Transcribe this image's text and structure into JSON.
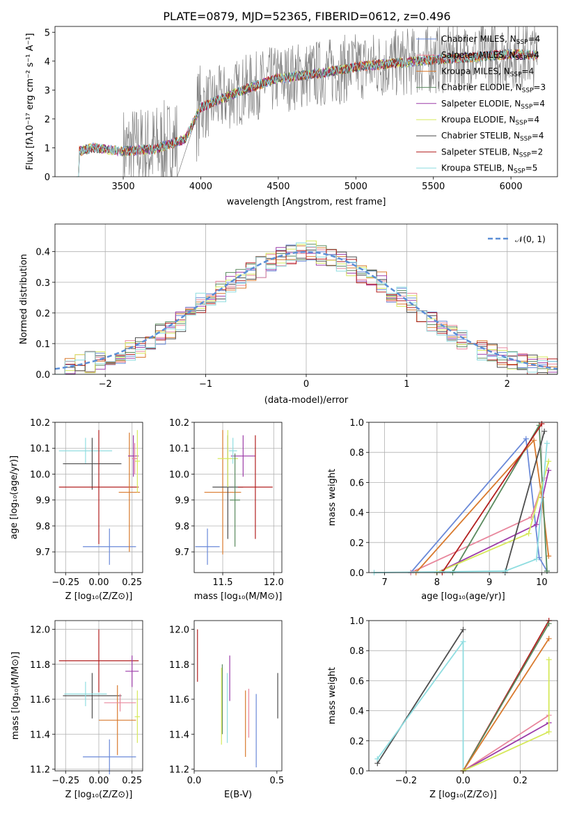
{
  "title": "PLATE=0879, MJD=52365, FIBERID=0612, z=0.496",
  "colors": {
    "chabrier_miles": "#6a89d8",
    "salpeter_miles": "#e8869c",
    "kroupa_miles": "#d97a2e",
    "chabrier_elodie": "#5a8a5e",
    "salpeter_elodie": "#9c3ba8",
    "kroupa_elodie": "#d6e85a",
    "chabrier_stelib": "#4d4d4d",
    "salpeter_stelib": "#b21f1f",
    "kroupa_stelib": "#8fdde0"
  },
  "chart_data": [
    {
      "id": "spectrum",
      "type": "line",
      "xlabel": "wavelength [Angstrom, rest frame]",
      "ylabel": "Flux [fλ10⁻¹⁷ erg cm⁻² s⁻¹ A⁻¹]",
      "xlim": [
        3060,
        6300
      ],
      "ylim": [
        0,
        5.2
      ],
      "xticks": [
        3500,
        4000,
        4500,
        5000,
        5500,
        6000
      ],
      "yticks": [
        0,
        1,
        2,
        3,
        4,
        5
      ],
      "model_continuum": {
        "x": [
          3200,
          3300,
          3500,
          3700,
          3900,
          4000,
          4300,
          4500,
          4800,
          5000,
          5300,
          5500,
          5800,
          6000,
          6150
        ],
        "y": [
          0.85,
          1.0,
          0.88,
          0.95,
          1.3,
          2.4,
          3.05,
          3.4,
          3.6,
          3.8,
          3.95,
          4.05,
          4.15,
          4.25,
          4.2
        ]
      },
      "legend": [
        {
          "label": "Chabrier MILES, N",
          "sub": "SSP",
          "suffix": "=4",
          "color_key": "chabrier_miles"
        },
        {
          "label": "Salpeter MILES, N",
          "sub": "SSP",
          "suffix": "=4",
          "color_key": "salpeter_miles"
        },
        {
          "label": "Kroupa MILES, N",
          "sub": "SSP",
          "suffix": "=4",
          "color_key": "kroupa_miles"
        },
        {
          "label": "Chabrier ELODIE, N",
          "sub": "SSP",
          "suffix": "=3",
          "color_key": "chabrier_elodie"
        },
        {
          "label": "Salpeter ELODIE, N",
          "sub": "SSP",
          "suffix": "=4",
          "color_key": "salpeter_elodie"
        },
        {
          "label": "Kroupa ELODIE, N",
          "sub": "SSP",
          "suffix": "=4",
          "color_key": "kroupa_elodie"
        },
        {
          "label": "Chabrier STELIB, N",
          "sub": "SSP",
          "suffix": "=4",
          "color_key": "chabrier_stelib"
        },
        {
          "label": "Salpeter STELIB, N",
          "sub": "SSP",
          "suffix": "=2",
          "color_key": "salpeter_stelib"
        },
        {
          "label": "Kroupa STELIB, N",
          "sub": "SSP",
          "suffix": "=5",
          "color_key": "kroupa_stelib"
        }
      ]
    },
    {
      "id": "residuals",
      "type": "histogram",
      "xlabel": "(data-model)/error",
      "ylabel": "Normed distribution",
      "xlim": [
        -2.5,
        2.5
      ],
      "ylim": [
        0,
        0.49
      ],
      "xticks": [
        -2,
        -1,
        0,
        1,
        2
      ],
      "yticks": [
        0.0,
        0.1,
        0.2,
        0.3,
        0.4
      ],
      "grid": true,
      "legend_label": "𝒩(0, 1)",
      "legend_placement": "top-right",
      "gaussian": {
        "mean": 0,
        "sigma": 1
      },
      "bins": 50,
      "reference_profile": [
        0.02,
        0.025,
        0.03,
        0.04,
        0.05,
        0.055,
        0.07,
        0.08,
        0.09,
        0.11,
        0.13,
        0.15,
        0.17,
        0.2,
        0.23,
        0.25,
        0.27,
        0.3,
        0.31,
        0.33,
        0.35,
        0.37,
        0.38,
        0.39,
        0.4,
        0.4,
        0.39,
        0.38,
        0.37,
        0.35,
        0.33,
        0.31,
        0.3,
        0.27,
        0.25,
        0.23,
        0.2,
        0.17,
        0.15,
        0.13,
        0.11,
        0.09,
        0.08,
        0.07,
        0.055,
        0.05,
        0.04,
        0.03,
        0.025,
        0.02
      ]
    },
    {
      "id": "z-age",
      "type": "errorbar",
      "xlabel": "Z [log₁₀(Z/Z⊙)]",
      "ylabel": "age  [log₁₀(age/yr)]",
      "xlim": [
        -0.33,
        0.33
      ],
      "ylim": [
        9.62,
        10.2
      ],
      "xticks": [
        -0.25,
        0.0,
        0.25
      ],
      "xticklabels": [
        "−0.25",
        "0.00",
        "0.25"
      ],
      "yticks": [
        9.7,
        9.8,
        9.9,
        10.0,
        10.1,
        10.2
      ],
      "grid": true,
      "points": [
        {
          "c": "chabrier_miles",
          "x": 0.08,
          "xe": 0.2,
          "y": 9.72,
          "ye": 0.07
        },
        {
          "c": "kroupa_stelib",
          "x": -0.1,
          "xe": 0.2,
          "y": 10.09,
          "ye": 0.05
        },
        {
          "c": "chabrier_stelib",
          "x": -0.05,
          "xe": 0.22,
          "y": 10.04,
          "ye": 0.1
        },
        {
          "c": "salpeter_stelib",
          "x": 0.0,
          "xe": 0.3,
          "y": 9.95,
          "ye": 0.22
        },
        {
          "c": "kroupa_miles",
          "x": 0.23,
          "xe": 0.08,
          "y": 9.93,
          "ye": 0.23
        },
        {
          "c": "salpeter_elodie",
          "x": 0.26,
          "xe": 0.04,
          "y": 10.07,
          "ye": 0.08
        },
        {
          "c": "kroupa_elodie",
          "x": 0.29,
          "xe": 0.02,
          "y": 10.05,
          "ye": 0.12
        },
        {
          "c": "salpeter_miles",
          "x": 0.27,
          "xe": 0.02,
          "y": 10.06,
          "ye": 0.06
        }
      ]
    },
    {
      "id": "mass-age",
      "type": "errorbar",
      "xlabel": "mass [log₁₀(M/M⊙)]",
      "ylabel": "",
      "xlim": [
        11.22,
        12.08
      ],
      "ylim": [
        9.62,
        10.2
      ],
      "xticks": [
        11.5,
        12.0
      ],
      "xticklabels": [
        "11.5",
        "12.0"
      ],
      "yticks": [
        9.7,
        9.8,
        9.9,
        10.0,
        10.1,
        10.2
      ],
      "grid": true,
      "points": [
        {
          "c": "chabrier_miles",
          "x": 11.35,
          "xe": 0.12,
          "y": 9.72,
          "ye": 0.07
        },
        {
          "c": "kroupa_miles",
          "x": 11.5,
          "xe": 0.18,
          "y": 9.93,
          "ye": 0.24
        },
        {
          "c": "chabrier_stelib",
          "x": 11.55,
          "xe": 0.15,
          "y": 9.95,
          "ye": 0.2
        },
        {
          "c": "kroupa_elodie",
          "x": 11.55,
          "xe": 0.1,
          "y": 10.06,
          "ye": 0.11
        },
        {
          "c": "salpeter_elodie",
          "x": 11.7,
          "xe": 0.12,
          "y": 10.07,
          "ye": 0.08
        },
        {
          "c": "salpeter_stelib",
          "x": 11.82,
          "xe": 0.17,
          "y": 9.95,
          "ye": 0.2
        },
        {
          "c": "kroupa_stelib",
          "x": 11.6,
          "xe": 0.04,
          "y": 10.09,
          "ye": 0.05
        },
        {
          "c": "chabrier_elodie",
          "x": 11.62,
          "xe": 0.05,
          "y": 9.9,
          "ye": 0.18
        }
      ]
    },
    {
      "id": "age-weight",
      "type": "line",
      "xlabel": "age  [log₁₀(age/yr)]",
      "ylabel": "mass weight",
      "xlim": [
        6.7,
        10.3
      ],
      "ylim": [
        0,
        1.0
      ],
      "xticks": [
        7,
        8,
        9,
        10
      ],
      "yticks": [
        0.0,
        0.2,
        0.4,
        0.6,
        0.8,
        1.0
      ],
      "grid": true,
      "series": [
        {
          "c": "chabrier_miles",
          "x": [
            7.5,
            9.7,
            9.95,
            10.1
          ],
          "y": [
            0.0,
            0.89,
            0.1,
            0.01
          ]
        },
        {
          "c": "salpeter_miles",
          "x": [
            7.5,
            9.8,
            10.05
          ],
          "y": [
            0.0,
            0.37,
            0.63
          ]
        },
        {
          "c": "kroupa_miles",
          "x": [
            7.6,
            9.85,
            10.0,
            10.13
          ],
          "y": [
            0.0,
            0.88,
            0.5,
            0.11
          ]
        },
        {
          "c": "chabrier_elodie",
          "x": [
            8.3,
            9.95,
            10.1
          ],
          "y": [
            0.0,
            0.98,
            0.01
          ]
        },
        {
          "c": "salpeter_elodie",
          "x": [
            8.0,
            9.9,
            10.13
          ],
          "y": [
            0.0,
            0.32,
            0.68
          ]
        },
        {
          "c": "kroupa_elodie",
          "x": [
            8.0,
            9.75,
            10.13
          ],
          "y": [
            0.0,
            0.26,
            0.74
          ]
        },
        {
          "c": "chabrier_stelib",
          "x": [
            9.3,
            10.05
          ],
          "y": [
            0.0,
            0.94
          ]
        },
        {
          "c": "salpeter_stelib",
          "x": [
            8.1,
            10.0
          ],
          "y": [
            0.0,
            0.99
          ]
        },
        {
          "c": "kroupa_stelib",
          "x": [
            6.8,
            9.3,
            9.9,
            10.1
          ],
          "y": [
            0.0,
            0.01,
            0.09,
            0.86
          ]
        }
      ]
    },
    {
      "id": "z-mass",
      "type": "errorbar",
      "xlabel": "Z [log₁₀(Z/Z⊙)]",
      "ylabel": "mass [log₁₀(M/M⊙)]",
      "xlim": [
        -0.33,
        0.33
      ],
      "ylim": [
        11.19,
        12.05
      ],
      "xticks": [
        -0.25,
        0.0,
        0.25
      ],
      "xticklabels": [
        "−0.25",
        "0.00",
        "0.25"
      ],
      "yticks": [
        11.2,
        11.4,
        11.6,
        11.8,
        12.0
      ],
      "grid": true,
      "points": [
        {
          "c": "salpeter_stelib",
          "x": 0.0,
          "xe": 0.3,
          "y": 11.82,
          "ye": 0.18
        },
        {
          "c": "chabrier_stelib",
          "x": -0.05,
          "xe": 0.22,
          "y": 11.62,
          "ye": 0.13
        },
        {
          "c": "kroupa_stelib",
          "x": -0.1,
          "xe": 0.16,
          "y": 11.63,
          "ye": 0.07
        },
        {
          "c": "chabrier_miles",
          "x": 0.08,
          "xe": 0.2,
          "y": 11.27,
          "ye": 0.1
        },
        {
          "c": "kroupa_miles",
          "x": 0.14,
          "xe": 0.14,
          "y": 11.48,
          "ye": 0.2
        },
        {
          "c": "salpeter_elodie",
          "x": 0.25,
          "xe": 0.05,
          "y": 11.76,
          "ye": 0.09
        },
        {
          "c": "kroupa_elodie",
          "x": 0.29,
          "xe": 0.02,
          "y": 11.5,
          "ye": 0.15
        },
        {
          "c": "salpeter_miles",
          "x": 0.16,
          "xe": 0.12,
          "y": 11.58,
          "ye": 0.05
        }
      ]
    },
    {
      "id": "ebv-mass",
      "type": "errorbar",
      "xlabel": "E(B-V)",
      "ylabel": "",
      "xlim": [
        0.0,
        0.53
      ],
      "ylim": [
        11.19,
        12.05
      ],
      "xticks": [
        0.0,
        0.5
      ],
      "xticklabels": [
        "0.0",
        "0.5"
      ],
      "yticks": [
        11.2,
        11.4,
        11.6,
        11.8,
        12.0
      ],
      "grid": false,
      "points": [
        {
          "c": "salpeter_stelib",
          "x": 0.02,
          "xe": 0,
          "y": 11.85,
          "ye": 0.15
        },
        {
          "c": "chabrier_elodie",
          "x": 0.17,
          "xe": 0,
          "y": 11.6,
          "ye": 0.2
        },
        {
          "c": "kroupa_elodie",
          "x": 0.165,
          "xe": 0,
          "y": 11.56,
          "ye": 0.22
        },
        {
          "c": "salpeter_elodie",
          "x": 0.215,
          "xe": 0,
          "y": 11.72,
          "ye": 0.13
        },
        {
          "c": "kroupa_stelib",
          "x": 0.2,
          "xe": 0,
          "y": 11.55,
          "ye": 0.2
        },
        {
          "c": "kroupa_miles",
          "x": 0.31,
          "xe": 0,
          "y": 11.46,
          "ye": 0.19
        },
        {
          "c": "salpeter_miles",
          "x": 0.33,
          "xe": 0,
          "y": 11.52,
          "ye": 0.14
        },
        {
          "c": "chabrier_miles",
          "x": 0.375,
          "xe": 0,
          "y": 11.42,
          "ye": 0.21
        },
        {
          "c": "chabrier_stelib",
          "x": 0.505,
          "xe": 0,
          "y": 11.62,
          "ye": 0.13
        }
      ]
    },
    {
      "id": "z-weight",
      "type": "line",
      "xlabel": "Z [log₁₀(Z/Z⊙)]",
      "ylabel": "mass weight",
      "xlim": [
        -0.33,
        0.33
      ],
      "ylim": [
        0,
        1.0
      ],
      "xticks": [
        -0.2,
        0.0,
        0.2
      ],
      "xticklabels": [
        "−0.2",
        "0.0",
        "0.2"
      ],
      "yticks": [
        0.0,
        0.2,
        0.4,
        0.6,
        0.8,
        1.0
      ],
      "grid": true,
      "series": [
        {
          "c": "chabrier_stelib",
          "x": [
            -0.3,
            0.0
          ],
          "y": [
            0.05,
            0.94
          ]
        },
        {
          "c": "kroupa_stelib",
          "x": [
            -0.3,
            0.0,
            0.0
          ],
          "y": [
            0.08,
            0.86,
            0.0
          ]
        },
        {
          "c": "salpeter_stelib",
          "x": [
            0.0,
            0.3
          ],
          "y": [
            0.0,
            1.0
          ]
        },
        {
          "c": "chabrier_elodie",
          "x": [
            0.0,
            0.3
          ],
          "y": [
            0.0,
            0.98
          ]
        },
        {
          "c": "kroupa_miles",
          "x": [
            0.0,
            0.3
          ],
          "y": [
            0.0,
            0.88
          ]
        },
        {
          "c": "salpeter_miles",
          "x": [
            0.0,
            0.3
          ],
          "y": [
            0.0,
            0.37
          ]
        },
        {
          "c": "salpeter_elodie",
          "x": [
            0.0,
            0.3
          ],
          "y": [
            0.0,
            0.32
          ]
        },
        {
          "c": "kroupa_elodie",
          "x": [
            0.0,
            0.3,
            0.3
          ],
          "y": [
            0.0,
            0.26,
            0.74
          ]
        }
      ]
    }
  ]
}
